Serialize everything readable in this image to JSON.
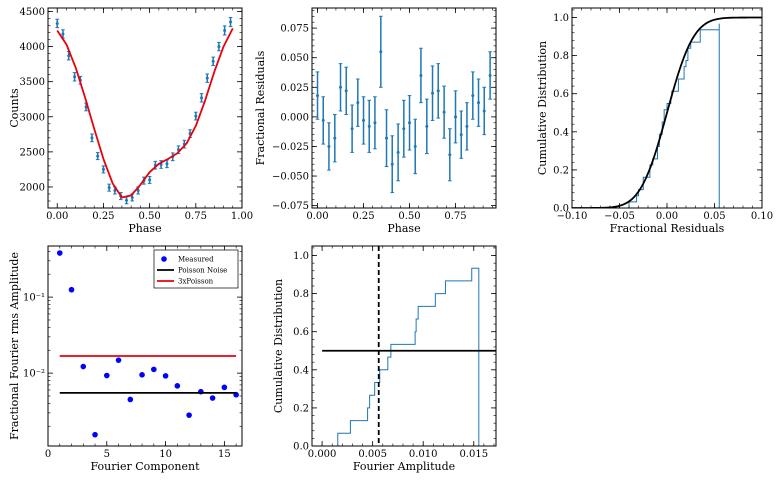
{
  "chart_data": [
    {
      "id": "p1",
      "type": "line",
      "xlabel": "Phase",
      "ylabel": "Counts",
      "xlim": [
        -0.05,
        1.0
      ],
      "ylim": [
        1700,
        4550
      ],
      "xticks": [
        "0.00",
        "0.25",
        "0.50",
        "0.75",
        "1.00"
      ],
      "xtick_values": [
        0,
        0.25,
        0.5,
        0.75,
        1.0
      ],
      "yticks": [
        "2000",
        "2500",
        "3000",
        "3500",
        "4000",
        "4500"
      ],
      "ytick_values": [
        2000,
        2500,
        3000,
        3500,
        4000,
        4500
      ],
      "series": [
        {
          "name": "data",
          "kind": "errorbar",
          "color": "#1f77b4",
          "x": [
            0.0,
            0.031,
            0.062,
            0.094,
            0.125,
            0.156,
            0.188,
            0.219,
            0.25,
            0.281,
            0.312,
            0.344,
            0.375,
            0.406,
            0.438,
            0.469,
            0.5,
            0.531,
            0.562,
            0.594,
            0.625,
            0.656,
            0.688,
            0.719,
            0.75,
            0.781,
            0.812,
            0.844,
            0.875,
            0.906,
            0.938
          ],
          "y": [
            4330,
            4180,
            3870,
            3570,
            3520,
            3140,
            2700,
            2440,
            2250,
            1990,
            1950,
            1870,
            1810,
            1850,
            1950,
            2090,
            2100,
            2310,
            2320,
            2330,
            2430,
            2530,
            2610,
            2760,
            3010,
            3270,
            3550,
            3790,
            4000,
            4230,
            4350
          ],
          "yerr": [
            60,
            60,
            60,
            60,
            55,
            55,
            55,
            50,
            50,
            50,
            50,
            50,
            50,
            50,
            50,
            50,
            50,
            55,
            55,
            55,
            55,
            55,
            55,
            55,
            55,
            60,
            60,
            60,
            60,
            65,
            65
          ]
        },
        {
          "name": "model",
          "kind": "line",
          "color": "#e8000b",
          "x": [
            0.0,
            0.05,
            0.1,
            0.15,
            0.2,
            0.25,
            0.3,
            0.35,
            0.4,
            0.45,
            0.5,
            0.55,
            0.6,
            0.65,
            0.7,
            0.75,
            0.8,
            0.85,
            0.9,
            0.95
          ],
          "y": [
            4230,
            4030,
            3700,
            3280,
            2830,
            2400,
            2050,
            1850,
            1880,
            2030,
            2210,
            2330,
            2400,
            2480,
            2620,
            2870,
            3230,
            3640,
            4000,
            4260
          ]
        }
      ]
    },
    {
      "id": "p2",
      "type": "scatter",
      "xlabel": "Phase",
      "ylabel": "Fractional Residuals",
      "xlim": [
        -0.03,
        0.97
      ],
      "ylim": [
        -0.077,
        0.092
      ],
      "xticks": [
        "0.00",
        "0.25",
        "0.50",
        "0.75"
      ],
      "xtick_values": [
        0,
        0.25,
        0.5,
        0.75
      ],
      "yticks": [
        "−0.075",
        "−0.050",
        "−0.025",
        "0.000",
        "0.025",
        "0.050",
        "0.075"
      ],
      "ytick_values": [
        -0.075,
        -0.05,
        -0.025,
        0,
        0.025,
        0.05,
        0.075
      ],
      "series": [
        {
          "name": "residuals",
          "kind": "errorbar",
          "color": "#1f77b4",
          "x": [
            0.0,
            0.031,
            0.062,
            0.094,
            0.125,
            0.156,
            0.188,
            0.219,
            0.25,
            0.281,
            0.312,
            0.344,
            0.375,
            0.406,
            0.438,
            0.469,
            0.5,
            0.531,
            0.562,
            0.594,
            0.625,
            0.656,
            0.688,
            0.719,
            0.75,
            0.781,
            0.812,
            0.844,
            0.875,
            0.906,
            0.938
          ],
          "y": [
            0.018,
            -0.003,
            -0.025,
            -0.018,
            0.025,
            0.022,
            -0.01,
            0.012,
            -0.003,
            -0.008,
            -0.005,
            0.055,
            -0.018,
            -0.04,
            -0.03,
            -0.01,
            -0.005,
            -0.025,
            0.035,
            -0.008,
            0.02,
            0.022,
            0.004,
            -0.032,
            0.0,
            -0.015,
            -0.008,
            0.018,
            0.012,
            0.005,
            0.035
          ],
          "yerr": [
            0.02,
            0.02,
            0.02,
            0.02,
            0.02,
            0.02,
            0.02,
            0.02,
            0.02,
            0.022,
            0.022,
            0.03,
            0.024,
            0.024,
            0.024,
            0.024,
            0.023,
            0.023,
            0.023,
            0.023,
            0.023,
            0.023,
            0.022,
            0.022,
            0.022,
            0.02,
            0.02,
            0.02,
            0.02,
            0.02,
            0.02
          ]
        }
      ]
    },
    {
      "id": "p3",
      "type": "line",
      "xlabel": "Fractional Residuals",
      "ylabel": "Cumulative Distribution",
      "xlim": [
        -0.1,
        0.1
      ],
      "ylim": [
        0.0,
        1.05
      ],
      "xticks": [
        "−0.10",
        "−0.05",
        "0.00",
        "0.05",
        "0.10"
      ],
      "xtick_values": [
        -0.1,
        -0.05,
        0,
        0.05,
        0.1
      ],
      "yticks": [
        "0.0",
        "0.2",
        "0.4",
        "0.6",
        "0.8",
        "1.0"
      ],
      "ytick_values": [
        0,
        0.2,
        0.4,
        0.6,
        0.8,
        1.0
      ],
      "series": [
        {
          "name": "empirical CDF",
          "kind": "step",
          "color": "#1f77b4",
          "x": [
            -0.04,
            -0.032,
            -0.03,
            -0.025,
            -0.025,
            -0.018,
            -0.018,
            -0.015,
            -0.01,
            -0.01,
            -0.008,
            -0.008,
            -0.005,
            -0.005,
            -0.003,
            -0.003,
            0.0,
            0.004,
            0.005,
            0.012,
            0.012,
            0.018,
            0.018,
            0.02,
            0.022,
            0.022,
            0.025,
            0.035,
            0.035,
            0.055
          ],
          "end_x": 0.055
        },
        {
          "name": "normal CDF",
          "kind": "line",
          "color": "#000000",
          "mu": 0.0,
          "sigma": 0.022
        }
      ]
    },
    {
      "id": "p4",
      "type": "scatter",
      "yscale": "log",
      "xlabel": "Fourier Component",
      "ylabel": "Fractional Fourier rms Amplitude",
      "xlim": [
        0,
        16.5
      ],
      "ylim": [
        0.0011,
        0.47
      ],
      "xticks": [
        "0",
        "5",
        "10",
        "15"
      ],
      "xtick_values": [
        0,
        5,
        10,
        15
      ],
      "yticks": [
        "10⁻¹",
        "10⁻²"
      ],
      "ytick_values": [
        0.1,
        0.01
      ],
      "legend": {
        "placement": "top-right",
        "entries": [
          "Measured",
          "Poisson Noise",
          "3xPoisson"
        ]
      },
      "series": [
        {
          "name": "Measured",
          "kind": "points",
          "color": "#0000ff",
          "x": [
            1,
            2,
            3,
            4,
            5,
            6,
            7,
            8,
            9,
            10,
            11,
            12,
            13,
            14,
            15,
            16
          ],
          "y": [
            0.38,
            0.125,
            0.0122,
            0.00155,
            0.0093,
            0.0148,
            0.0045,
            0.0095,
            0.0112,
            0.0092,
            0.0068,
            0.0028,
            0.0057,
            0.0047,
            0.0065,
            0.0052
          ]
        },
        {
          "name": "Poisson Noise",
          "kind": "hline",
          "color": "#000000",
          "x0": 1,
          "x1": 16,
          "y": 0.0055
        },
        {
          "name": "3xPoisson",
          "kind": "hline",
          "color": "#e8000b",
          "x0": 1,
          "x1": 16,
          "y": 0.0168
        }
      ]
    },
    {
      "id": "p5",
      "type": "line",
      "xlabel": "Fourier Amplitude",
      "ylabel": "Cumulative Distribution",
      "xlim": [
        -0.001,
        0.0172
      ],
      "ylim": [
        0.0,
        1.05
      ],
      "xticks": [
        "0.000",
        "0.005",
        "0.010",
        "0.015"
      ],
      "xtick_values": [
        0,
        0.005,
        0.01,
        0.015
      ],
      "yticks": [
        "0.0",
        "0.2",
        "0.4",
        "0.6",
        "0.8",
        "1.0"
      ],
      "ytick_values": [
        0,
        0.2,
        0.4,
        0.6,
        0.8,
        1.0
      ],
      "series": [
        {
          "name": "empirical CDF",
          "kind": "step",
          "color": "#1f77b4",
          "x": [
            0.00155,
            0.0028,
            0.0045,
            0.0047,
            0.0052,
            0.0057,
            0.0065,
            0.0068,
            0.0092,
            0.0093,
            0.0095,
            0.0112,
            0.0122,
            0.0148
          ],
          "end_x": 0.0155
        },
        {
          "name": "reference level",
          "kind": "hline",
          "color": "#000000",
          "x0": 0.0,
          "x1": 0.0172,
          "y": 0.5
        },
        {
          "name": "threshold",
          "kind": "vline",
          "color": "#000000",
          "dashed": true,
          "x": 0.0056
        }
      ]
    }
  ]
}
